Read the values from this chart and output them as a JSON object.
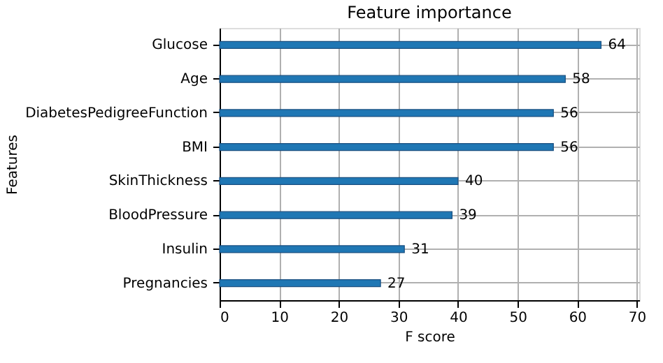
{
  "chart_data": {
    "type": "bar",
    "orientation": "horizontal",
    "title": "Feature importance",
    "xlabel": "F score",
    "ylabel": "Features",
    "categories": [
      "Glucose",
      "Age",
      "DiabetesPedigreeFunction",
      "BMI",
      "SkinThickness",
      "BloodPressure",
      "Insulin",
      "Pregnancies"
    ],
    "values": [
      64,
      58,
      56,
      56,
      40,
      39,
      31,
      27
    ],
    "color": "#1f77b4",
    "xlim": [
      0,
      70.4
    ],
    "xticks": [
      0,
      10,
      20,
      30,
      40,
      50,
      60,
      70
    ],
    "grid": true,
    "data_labels": true
  }
}
